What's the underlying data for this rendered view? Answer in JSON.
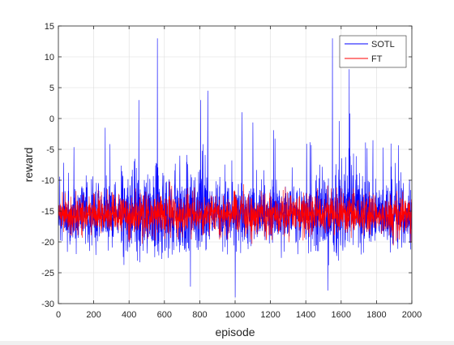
{
  "chart_data": {
    "type": "line",
    "title": "",
    "xlabel": "episode",
    "ylabel": "reward",
    "xlim": [
      0,
      2000
    ],
    "ylim": [
      -30,
      15
    ],
    "xticks": [
      0,
      200,
      400,
      600,
      800,
      1000,
      1200,
      1400,
      1600,
      1800,
      2000
    ],
    "yticks": [
      -30,
      -25,
      -20,
      -15,
      -10,
      -5,
      0,
      5,
      10,
      15
    ],
    "grid": true,
    "legend_position": "top-right",
    "n_episodes": 2000,
    "series": [
      {
        "name": "SOTL",
        "color": "#0000ff",
        "mean": -15.5,
        "approx_range": [
          -29,
          13
        ],
        "notable_points": [
          {
            "x": 560,
            "y": 13
          },
          {
            "x": 1550,
            "y": 13
          },
          {
            "x": 1645,
            "y": 8
          },
          {
            "x": 1000,
            "y": -29
          },
          {
            "x": 805,
            "y": 3
          },
          {
            "x": 455,
            "y": 3
          }
        ]
      },
      {
        "name": "FT",
        "color": "#ff0000",
        "mean": -15.5,
        "approx_range": [
          -25.5,
          -8.5
        ]
      }
    ]
  }
}
